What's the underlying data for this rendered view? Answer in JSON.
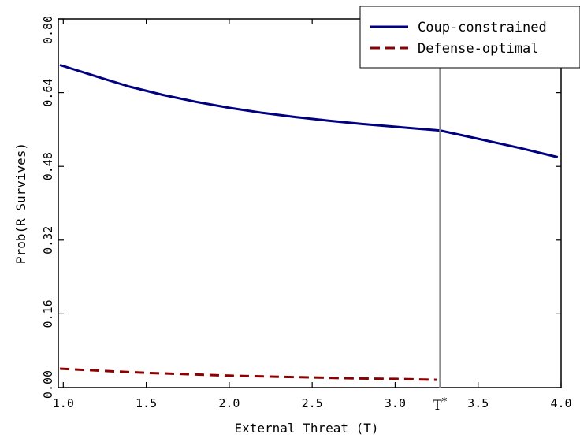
{
  "chart_data": {
    "type": "line",
    "title": "",
    "xlabel": "External Threat (T)",
    "ylabel": "Prob(R Survives)",
    "xlim": [
      0.97,
      4.0
    ],
    "ylim": [
      0.0,
      0.8
    ],
    "x_ticks": [
      1.0,
      1.5,
      2.0,
      2.5,
      3.0,
      3.5,
      4.0
    ],
    "x_tick_labels": [
      "1.0",
      "1.5",
      "2.0",
      "2.5",
      "3.0",
      "3.5",
      "4.0"
    ],
    "y_ticks": [
      0.0,
      0.16,
      0.32,
      0.48,
      0.64,
      0.8
    ],
    "y_tick_labels": [
      "0.00",
      "0.16",
      "0.32",
      "0.48",
      "0.64",
      "0.80"
    ],
    "grid": false,
    "legend_position": "top-right",
    "vline": {
      "x": 3.27,
      "label": "T",
      "label_sup": "*",
      "color": "#8c8c8c"
    },
    "series": [
      {
        "name": "Coup-constrained",
        "color": "#000080",
        "style": "solid",
        "x": [
          0.98,
          1.2,
          1.4,
          1.6,
          1.8,
          2.0,
          2.2,
          2.4,
          2.6,
          2.8,
          3.0,
          3.27,
          3.5,
          3.75,
          3.98
        ],
        "y": [
          0.7,
          0.675,
          0.653,
          0.635,
          0.62,
          0.607,
          0.596,
          0.587,
          0.579,
          0.572,
          0.566,
          0.558,
          0.54,
          0.52,
          0.5
        ]
      },
      {
        "name": "Defense-optimal",
        "color": "#8b0000",
        "style": "dashed",
        "x": [
          0.98,
          1.25,
          1.5,
          1.75,
          2.0,
          2.25,
          2.5,
          2.75,
          3.0,
          3.25
        ],
        "y": [
          0.041,
          0.036,
          0.032,
          0.029,
          0.026,
          0.024,
          0.022,
          0.02,
          0.019,
          0.017
        ]
      }
    ]
  }
}
